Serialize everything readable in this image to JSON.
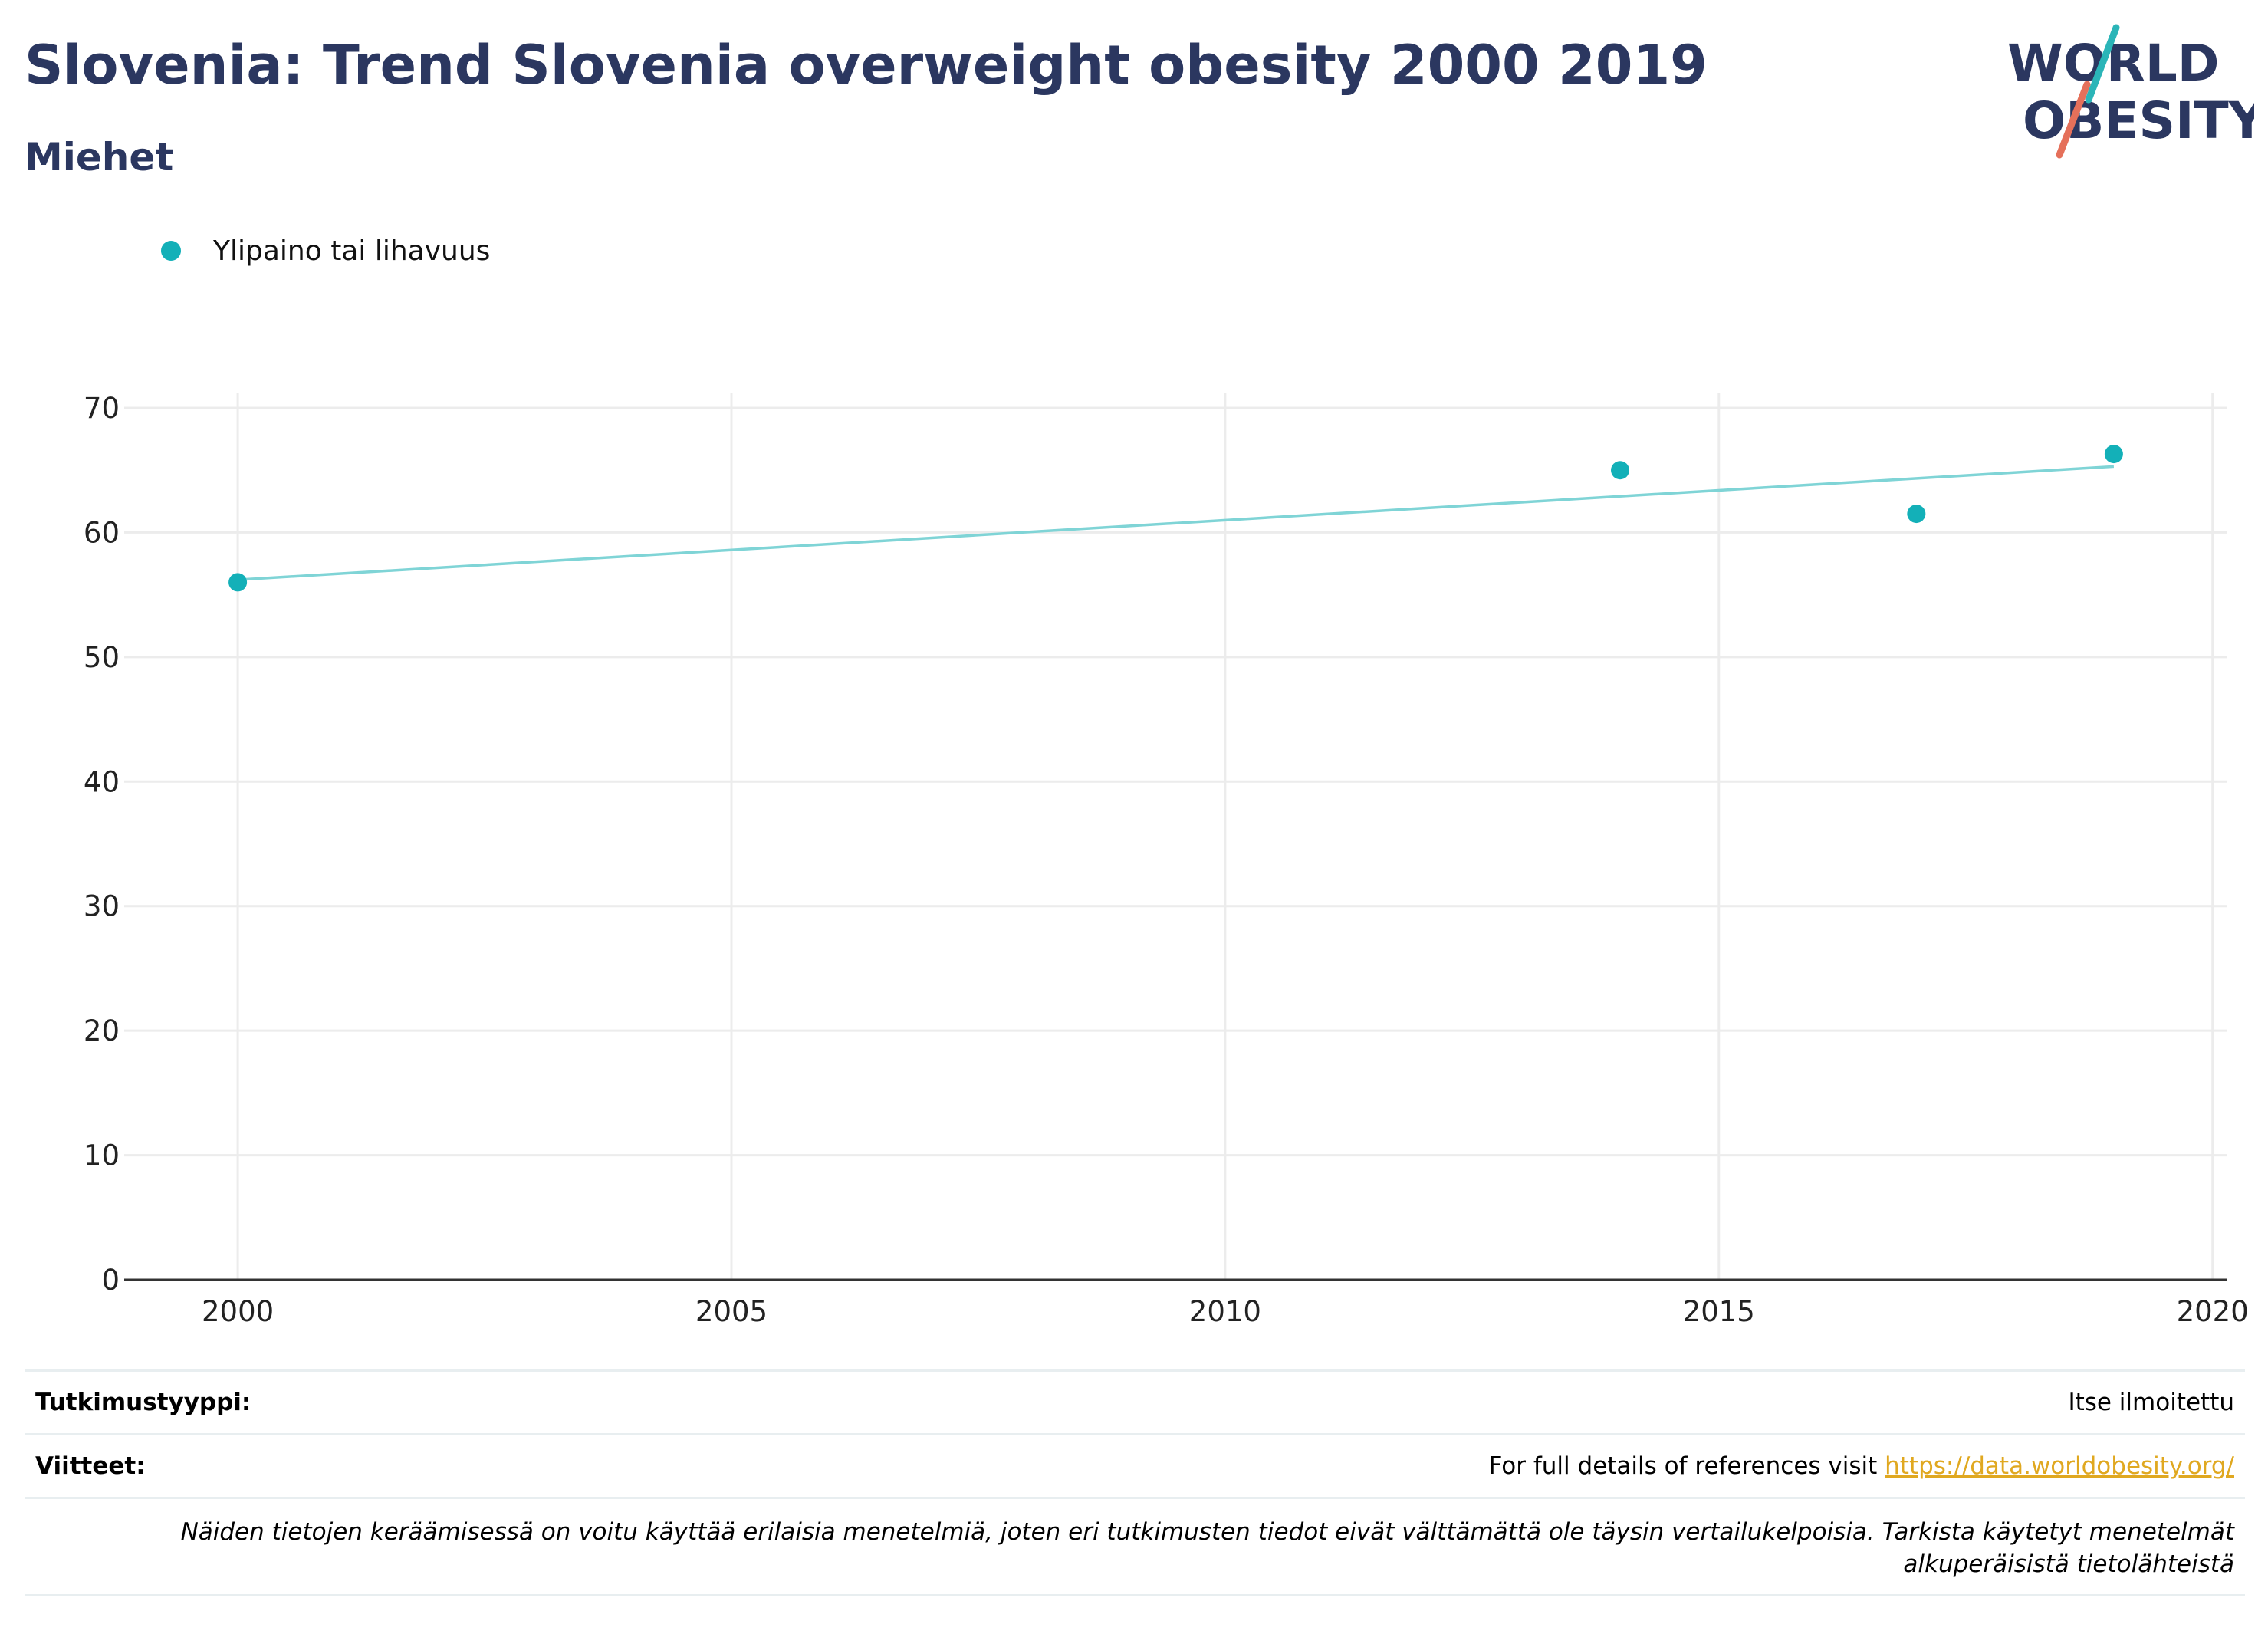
{
  "header": {
    "title": "Slovenia: Trend Slovenia overweight obesity 2000 2019",
    "subtitle": "Miehet"
  },
  "logo": {
    "line1": "WORLD",
    "line2": "OBESITY"
  },
  "colors": {
    "accent": "#13b0b8",
    "trend": "#7fd4d6",
    "title": "#2b3760",
    "link": "#e0a820",
    "logo_teal": "#2bb5b8",
    "logo_coral": "#e5705a"
  },
  "chart_data": {
    "type": "scatter",
    "title": "Slovenia: Trend Slovenia overweight obesity 2000 2019",
    "subtitle": "Miehet",
    "xlabel": "",
    "ylabel": "",
    "xlim": [
      1998.85,
      2020.15
    ],
    "ylim": [
      0,
      70
    ],
    "x_ticks": [
      2000,
      2005,
      2010,
      2015,
      2020
    ],
    "y_ticks": [
      0,
      10,
      20,
      30,
      40,
      50,
      60,
      70
    ],
    "grid": true,
    "legend_position": "top-left",
    "series": [
      {
        "name": "Ylipaino tai lihavuus",
        "x": [
          2000,
          2014,
          2017,
          2019
        ],
        "y": [
          56,
          65,
          61.5,
          66.3
        ]
      }
    ],
    "trendline": {
      "x": [
        2000,
        2019
      ],
      "y": [
        56.2,
        65.3
      ]
    }
  },
  "footer": {
    "study_type_label": "Tutkimustyyppi:",
    "study_type_value": "Itse ilmoitettu",
    "references_label": "Viitteet:",
    "references_text": "For full details of references visit ",
    "references_link": "https://data.worldobesity.org/",
    "note": "Näiden tietojen keräämisessä on voitu käyttää erilaisia menetelmiä, joten eri tutkimusten tiedot eivät välttämättä ole täysin vertailukelpoisia. Tarkista käytetyt menetelmät alkuperäisistä tietolähteistä"
  }
}
